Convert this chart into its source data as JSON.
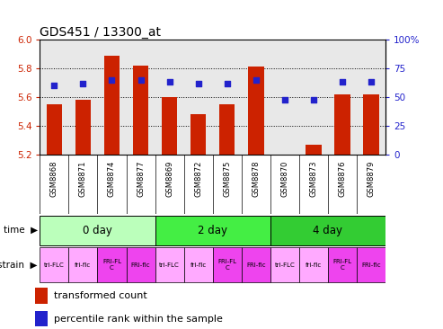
{
  "title": "GDS451 / 13300_at",
  "samples": [
    "GSM8868",
    "GSM8871",
    "GSM8874",
    "GSM8877",
    "GSM8869",
    "GSM8872",
    "GSM8875",
    "GSM8878",
    "GSM8870",
    "GSM8873",
    "GSM8876",
    "GSM8879"
  ],
  "bar_values": [
    5.55,
    5.58,
    5.89,
    5.82,
    5.6,
    5.48,
    5.55,
    5.81,
    5.2,
    5.27,
    5.62,
    5.62
  ],
  "percentile_values": [
    60,
    62,
    65,
    65,
    63,
    62,
    62,
    65,
    48,
    48,
    63,
    63
  ],
  "ylim_left": [
    5.2,
    6.0
  ],
  "ylim_right": [
    0,
    100
  ],
  "yticks_left": [
    5.2,
    5.4,
    5.6,
    5.8,
    6.0
  ],
  "yticks_right": [
    0,
    25,
    50,
    75,
    100
  ],
  "bar_color": "#cc2200",
  "dot_color": "#2222cc",
  "bar_base": 5.2,
  "time_groups": [
    {
      "label": "0 day",
      "start": 0,
      "end": 4,
      "color": "#bbffbb"
    },
    {
      "label": "2 day",
      "start": 4,
      "end": 8,
      "color": "#44ee44"
    },
    {
      "label": "4 day",
      "start": 8,
      "end": 12,
      "color": "#33cc33"
    }
  ],
  "strain_labels": [
    "tri-FLC",
    "fri-flc",
    "FRI-FL\nC",
    "FRI-flc",
    "tri-FLC",
    "fri-flc",
    "FRI-FL\nC",
    "FRI-flc",
    "tri-FLC",
    "fri-flc",
    "FRI-FL\nC",
    "FRI-flc"
  ],
  "strain_colors": [
    "#ffaaff",
    "#ffaaff",
    "#ee44ee",
    "#ee44ee",
    "#ffaaff",
    "#ffaaff",
    "#ee44ee",
    "#ee44ee",
    "#ffaaff",
    "#ffaaff",
    "#ee44ee",
    "#ee44ee"
  ],
  "legend_bar_label": "transformed count",
  "legend_dot_label": "percentile rank within the sample",
  "grid_color": "black",
  "bg_color": "#ffffff",
  "plot_bg": "#e8e8e8",
  "xtick_bg": "#c8c8c8"
}
